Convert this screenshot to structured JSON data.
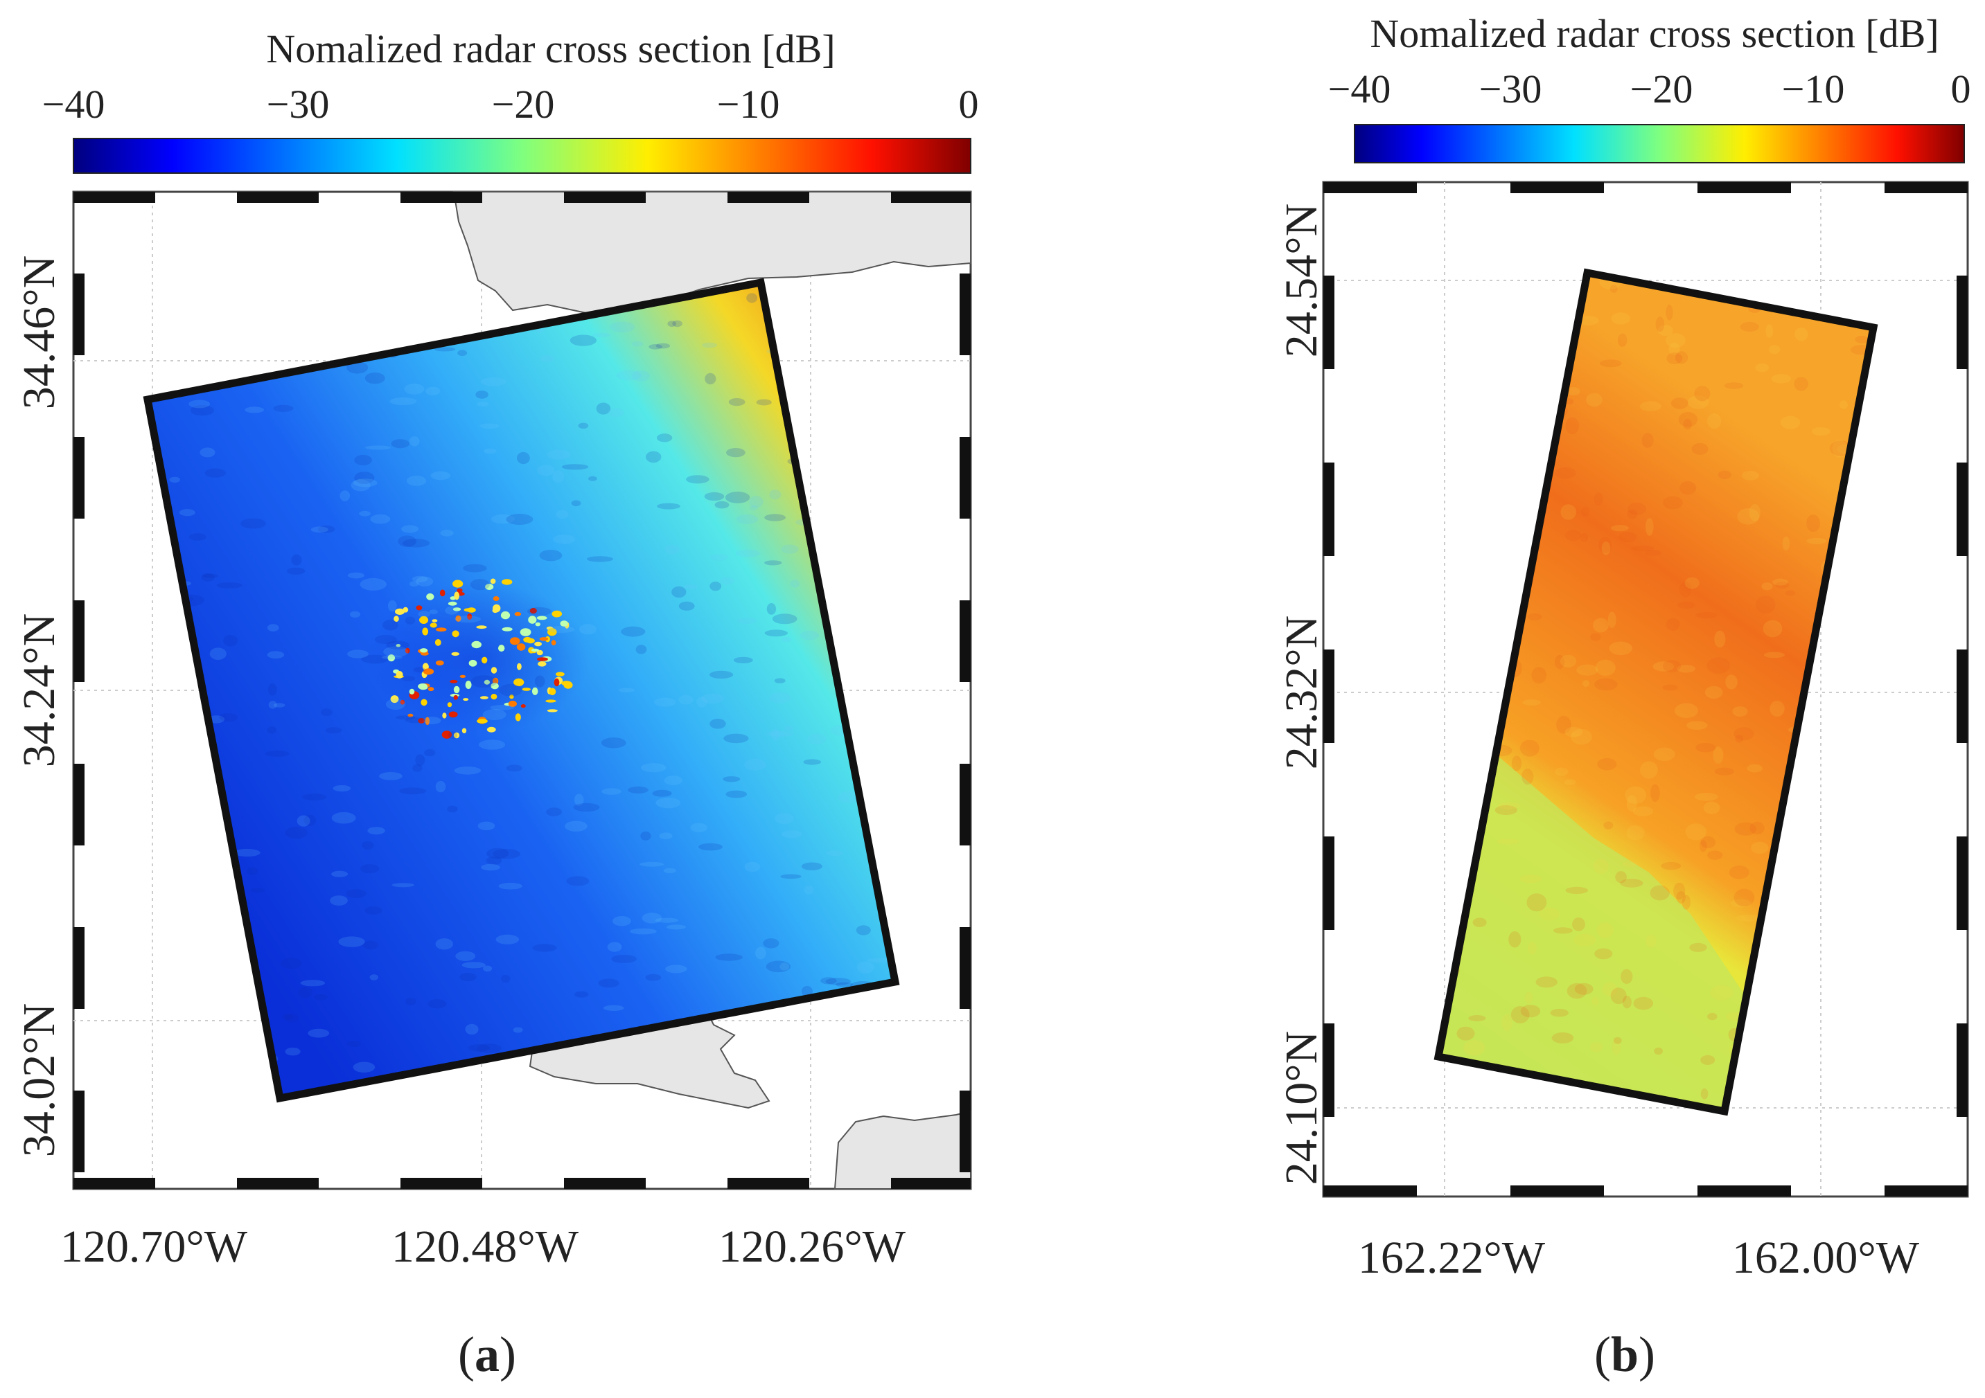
{
  "figure": {
    "panels": [
      {
        "id": "a",
        "label": "(a)",
        "label_letter": "a",
        "colorbar": {
          "title": "Nomalized radar cross section [dB]",
          "ticks": [
            "−40",
            "−30",
            "−20",
            "−10",
            "0"
          ],
          "range_db": [
            -40,
            0
          ]
        },
        "lat_labels": [
          "34.46°N",
          "34.24°N",
          "34.02°N"
        ],
        "lon_labels": [
          "120.70°W",
          "120.48°W",
          "120.26°W"
        ],
        "has_coastline": true,
        "scene": "Santa Barbara Channel region, low backscatter with bright point targets"
      },
      {
        "id": "b",
        "label": "(b)",
        "label_letter": "b",
        "colorbar": {
          "title": "Nomalized radar cross section [dB]",
          "ticks": [
            "−40",
            "−30",
            "−20",
            "−10",
            "0"
          ],
          "range_db": [
            -40,
            0
          ]
        },
        "lat_labels": [
          "24.54°N",
          "24.32°N",
          "24.10°N"
        ],
        "lon_labels": [
          "162.22°W",
          "162.00°W"
        ],
        "has_coastline": false
      }
    ],
    "colormap": "jet",
    "colors": {
      "frame": "#111111",
      "land": "#e6e6e6",
      "coast": "#555555",
      "grid": "#cccccc"
    }
  }
}
